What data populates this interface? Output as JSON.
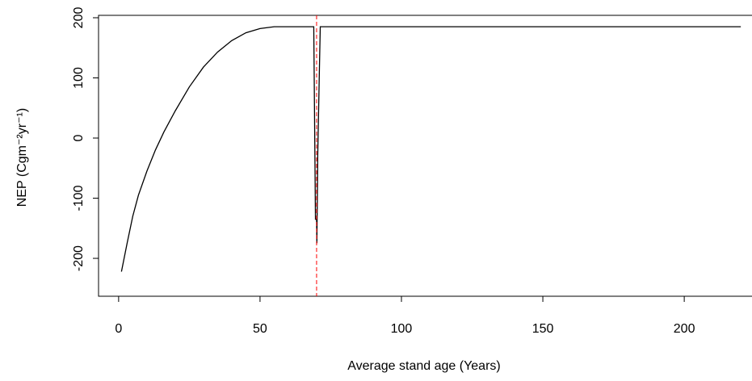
{
  "chart_data": {
    "type": "line",
    "x_label": "Average stand age  (Years)",
    "y_label": "NEP (Cgm⁻²yr⁻¹)",
    "xlim": [
      -7.1,
      223.1
    ],
    "xticks": [
      0,
      50,
      100,
      150,
      200
    ],
    "ylim": [
      -263,
      204
    ],
    "yticks": [
      -200,
      -100,
      0,
      100,
      200
    ],
    "vline": 70,
    "vline_color": "#ff0000",
    "series": [
      {
        "color": "#000000",
        "x": [
          1,
          3,
          5,
          7,
          10,
          13,
          16,
          20,
          25,
          30,
          35,
          40,
          45,
          50,
          55,
          69,
          69.6,
          70,
          70.1,
          70.4,
          71,
          71.3,
          220
        ],
        "values": [
          -222,
          -175,
          -130,
          -95,
          -55,
          -20,
          10,
          45,
          85,
          118,
          143,
          162,
          175,
          182,
          185,
          185,
          -135,
          -135,
          -175,
          -30,
          115,
          185,
          185
        ]
      }
    ]
  }
}
